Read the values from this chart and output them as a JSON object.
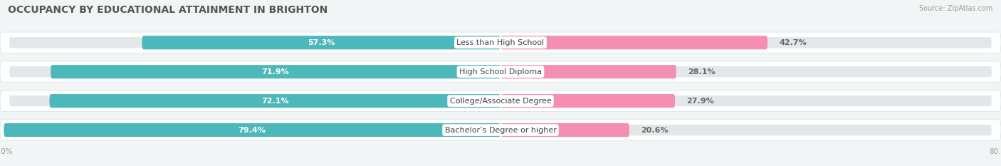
{
  "title": "OCCUPANCY BY EDUCATIONAL ATTAINMENT IN BRIGHTON",
  "source": "Source: ZipAtlas.com",
  "categories": [
    "Less than High School",
    "High School Diploma",
    "College/Associate Degree",
    "Bachelor’s Degree or higher"
  ],
  "owner_values": [
    57.3,
    71.9,
    72.1,
    79.4
  ],
  "renter_values": [
    42.7,
    28.1,
    27.9,
    20.6
  ],
  "owner_color": "#4db8bb",
  "renter_color": "#f48fb1",
  "label_color_owner": "#ffffff",
  "label_color_renter": "#666666",
  "bar_height": 0.72,
  "xlim_left": -80.0,
  "xlim_right": 80.0,
  "background_color": "#f2f5f6",
  "bar_bg_color": "#e2e8ea",
  "row_bg_color": "#e8ecee",
  "title_fontsize": 10,
  "source_fontsize": 7,
  "legend_fontsize": 8,
  "label_fontsize": 8,
  "category_fontsize": 8
}
